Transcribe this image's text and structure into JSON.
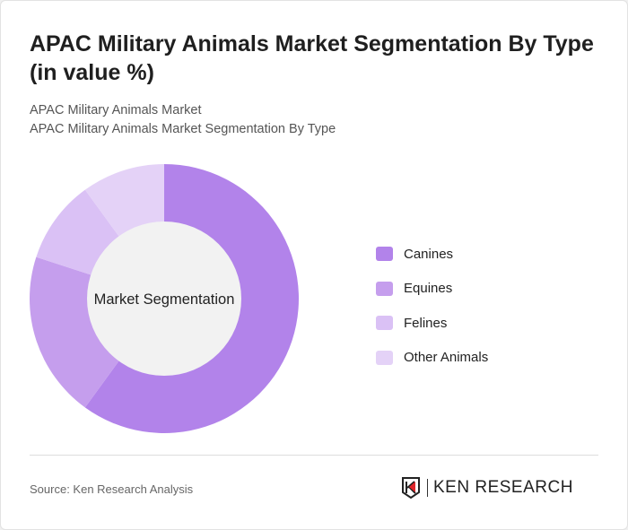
{
  "title": "APAC Military Animals Market Segmentation By Type (in value %)",
  "subtitle_1": "APAC Military Animals Market",
  "subtitle_2": "APAC Military Animals Market Segmentation By Type",
  "source": "Source: Ken Research Analysis",
  "logo_text": "KEN RESEARCH",
  "chart_data": {
    "type": "pie",
    "donut": true,
    "center_label": "Market Segmentation",
    "legend_position": "right",
    "categories": [
      "Canines",
      "Equines",
      "Felines",
      "Other Animals"
    ],
    "values": [
      60,
      20,
      10,
      10
    ],
    "colors": [
      "#b283ea",
      "#c59eed",
      "#dac1f5",
      "#e4d2f7"
    ]
  }
}
